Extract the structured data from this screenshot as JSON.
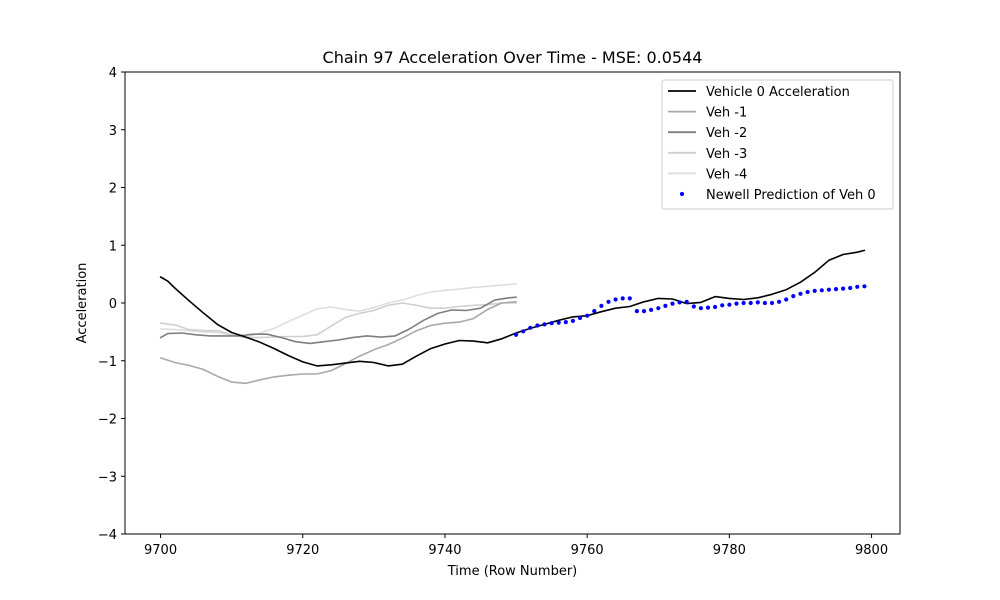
{
  "chart_data": {
    "type": "line",
    "title": "Chain 97 Acceleration Over Time - MSE: 0.0544",
    "xlabel": "Time (Row Number)",
    "ylabel": "Acceleration",
    "xlim": [
      9695,
      9804
    ],
    "ylim": [
      -4,
      4
    ],
    "xticks": [
      9700,
      9720,
      9740,
      9760,
      9780,
      9800
    ],
    "yticks": [
      -4,
      -3,
      -2,
      -1,
      0,
      1,
      2,
      3,
      4
    ],
    "ytick_labels": [
      "−4",
      "−3",
      "−2",
      "−1",
      "0",
      "1",
      "2",
      "3",
      "4"
    ],
    "grid": false,
    "legend_position": "top-right",
    "series": [
      {
        "name": "Vehicle 0 Acceleration",
        "style": "line",
        "color": "#000000",
        "x": [
          9700,
          9701,
          9702,
          9704,
          9706,
          9708,
          9710,
          9712,
          9714,
          9716,
          9718,
          9720,
          9722,
          9724,
          9726,
          9728,
          9730,
          9732,
          9734,
          9736,
          9738,
          9740,
          9742,
          9744,
          9746,
          9748,
          9750,
          9752,
          9754,
          9756,
          9758,
          9760,
          9762,
          9764,
          9766,
          9768,
          9770,
          9772,
          9774,
          9776,
          9778,
          9780,
          9782,
          9784,
          9786,
          9788,
          9790,
          9792,
          9794,
          9796,
          9798,
          9799
        ],
        "y": [
          0.45,
          0.38,
          0.26,
          0.04,
          -0.17,
          -0.37,
          -0.51,
          -0.59,
          -0.68,
          -0.79,
          -0.91,
          -1.02,
          -1.09,
          -1.07,
          -1.04,
          -1.01,
          -1.03,
          -1.09,
          -1.06,
          -0.92,
          -0.79,
          -0.71,
          -0.65,
          -0.66,
          -0.69,
          -0.62,
          -0.52,
          -0.44,
          -0.37,
          -0.3,
          -0.24,
          -0.22,
          -0.15,
          -0.09,
          -0.06,
          0.02,
          0.08,
          0.07,
          -0.01,
          0.01,
          0.11,
          0.08,
          0.06,
          0.09,
          0.15,
          0.23,
          0.36,
          0.53,
          0.74,
          0.84,
          0.88,
          0.91
        ]
      },
      {
        "name": "Veh -1",
        "style": "line",
        "color": "#a8a8a8",
        "x": [
          9700,
          9702,
          9704,
          9706,
          9708,
          9710,
          9712,
          9714,
          9716,
          9718,
          9720,
          9722,
          9724,
          9726,
          9728,
          9730,
          9732,
          9734,
          9736,
          9738,
          9740,
          9742,
          9744,
          9746,
          9748,
          9750
        ],
        "y": [
          -0.95,
          -1.03,
          -1.08,
          -1.15,
          -1.27,
          -1.37,
          -1.39,
          -1.33,
          -1.28,
          -1.25,
          -1.23,
          -1.23,
          -1.17,
          -1.05,
          -0.92,
          -0.81,
          -0.72,
          -0.61,
          -0.48,
          -0.39,
          -0.35,
          -0.33,
          -0.27,
          -0.11,
          0.0,
          0.02
        ]
      },
      {
        "name": "Veh -2",
        "style": "line",
        "color": "#7f7f7f",
        "x": [
          9700,
          9701,
          9703,
          9705,
          9707,
          9709,
          9711,
          9713,
          9715,
          9717,
          9719,
          9721,
          9723,
          9725,
          9727,
          9729,
          9731,
          9733,
          9735,
          9737,
          9739,
          9741,
          9743,
          9745,
          9747,
          9749,
          9750
        ],
        "y": [
          -0.6,
          -0.53,
          -0.52,
          -0.55,
          -0.57,
          -0.57,
          -0.57,
          -0.54,
          -0.54,
          -0.6,
          -0.67,
          -0.7,
          -0.67,
          -0.64,
          -0.6,
          -0.57,
          -0.59,
          -0.57,
          -0.45,
          -0.3,
          -0.18,
          -0.12,
          -0.13,
          -0.09,
          0.05,
          0.09,
          0.1
        ]
      },
      {
        "name": "Veh -3",
        "style": "line",
        "color": "#cfcfcf",
        "x": [
          9700,
          9702,
          9704,
          9706,
          9708,
          9710,
          9712,
          9714,
          9716,
          9718,
          9720,
          9722,
          9724,
          9726,
          9728,
          9730,
          9732,
          9734,
          9736,
          9738,
          9740,
          9742,
          9744,
          9746,
          9748,
          9750
        ],
        "y": [
          -0.35,
          -0.38,
          -0.46,
          -0.48,
          -0.48,
          -0.55,
          -0.6,
          -0.6,
          -0.59,
          -0.58,
          -0.58,
          -0.55,
          -0.4,
          -0.25,
          -0.18,
          -0.13,
          -0.04,
          0.0,
          -0.04,
          -0.09,
          -0.09,
          -0.06,
          -0.04,
          -0.03,
          0.0,
          0.0
        ]
      },
      {
        "name": "Veh -4",
        "style": "line",
        "color": "#dedede",
        "x": [
          9700,
          9702,
          9704,
          9706,
          9708,
          9710,
          9712,
          9714,
          9716,
          9718,
          9720,
          9722,
          9724,
          9726,
          9728,
          9730,
          9732,
          9734,
          9736,
          9738,
          9740,
          9742,
          9744,
          9746,
          9748,
          9750
        ],
        "y": [
          -0.45,
          -0.46,
          -0.48,
          -0.5,
          -0.51,
          -0.55,
          -0.6,
          -0.52,
          -0.44,
          -0.32,
          -0.21,
          -0.1,
          -0.07,
          -0.11,
          -0.14,
          -0.08,
          0.0,
          0.05,
          0.13,
          0.19,
          0.22,
          0.24,
          0.27,
          0.29,
          0.31,
          0.33
        ]
      },
      {
        "name": "Newell Prediction of Veh 0",
        "style": "points",
        "color": "#0000ff",
        "x": [
          9750,
          9751,
          9752,
          9753,
          9754,
          9755,
          9756,
          9757,
          9758,
          9759,
          9760,
          9761,
          9762,
          9763,
          9764,
          9765,
          9766,
          9767,
          9768,
          9769,
          9770,
          9771,
          9772,
          9773,
          9774,
          9775,
          9776,
          9777,
          9778,
          9779,
          9780,
          9781,
          9782,
          9783,
          9784,
          9785,
          9786,
          9787,
          9788,
          9789,
          9790,
          9791,
          9792,
          9793,
          9794,
          9795,
          9796,
          9797,
          9798,
          9799
        ],
        "y": [
          -0.55,
          -0.49,
          -0.43,
          -0.39,
          -0.37,
          -0.35,
          -0.34,
          -0.33,
          -0.31,
          -0.26,
          -0.22,
          -0.14,
          -0.05,
          0.02,
          0.06,
          0.08,
          0.08,
          -0.14,
          -0.14,
          -0.12,
          -0.09,
          -0.05,
          -0.01,
          0.01,
          0.02,
          -0.06,
          -0.09,
          -0.08,
          -0.07,
          -0.04,
          -0.03,
          -0.01,
          0.0,
          0.0,
          0.01,
          0.0,
          0.0,
          0.02,
          0.06,
          0.12,
          0.16,
          0.19,
          0.21,
          0.22,
          0.23,
          0.24,
          0.25,
          0.26,
          0.28,
          0.29
        ]
      }
    ]
  }
}
